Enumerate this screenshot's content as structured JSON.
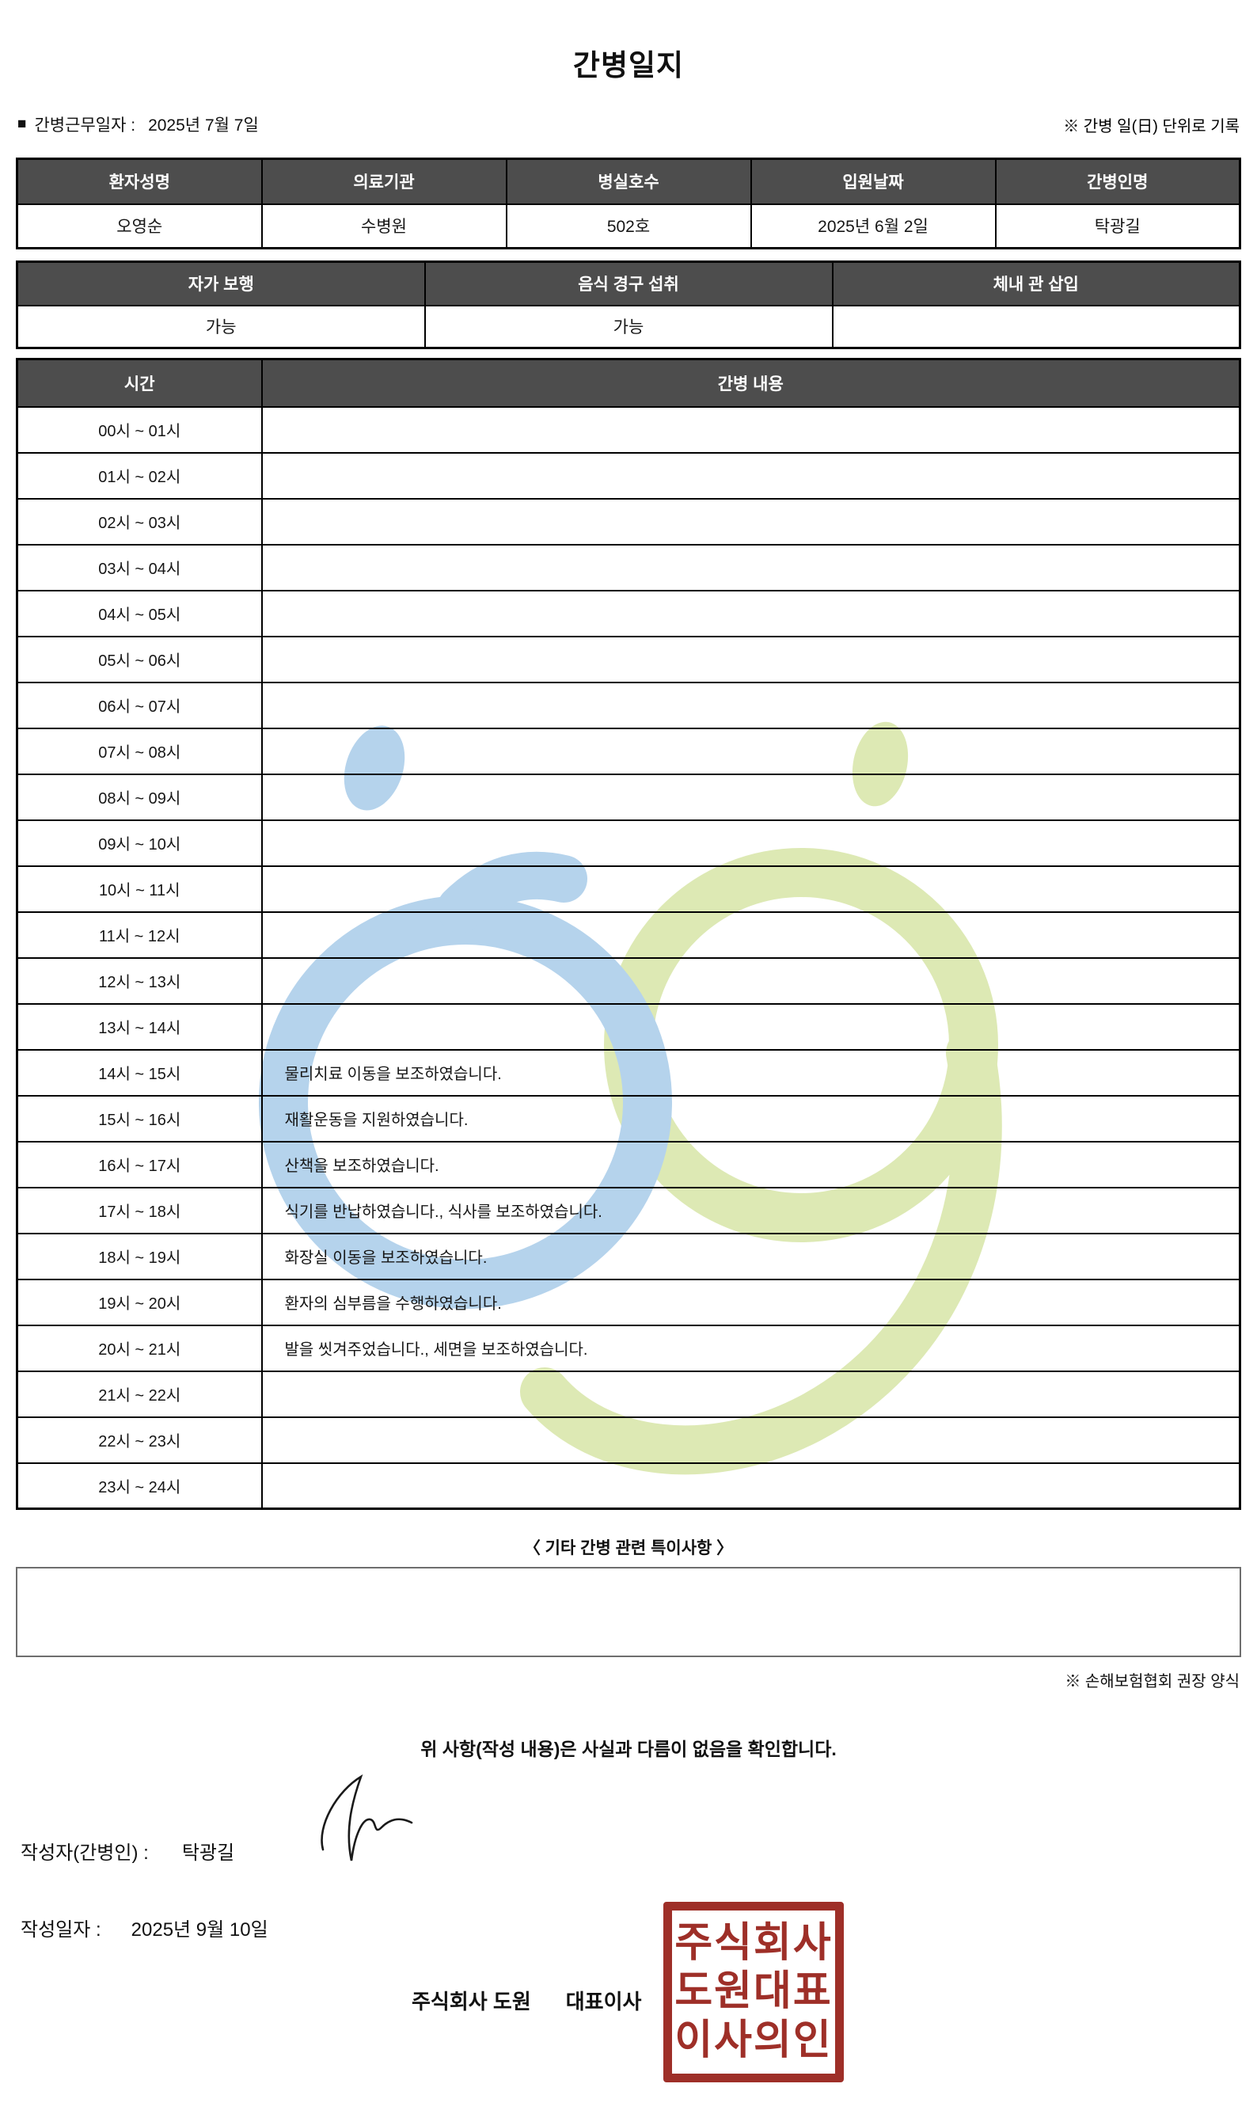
{
  "title": "간병일지",
  "meta": {
    "bullet": "■",
    "work_date_label": "간병근무일자  :",
    "work_date": "2025년 7월 7일",
    "unit_note": "※ 간병 일(日) 단위로 기록"
  },
  "patient_table": {
    "headers": [
      "환자성명",
      "의료기관",
      "병실호수",
      "입원날짜",
      "간병인명"
    ],
    "values": [
      "오영순",
      "수병원",
      "502호",
      "2025년 6월 2일",
      "탁광길"
    ]
  },
  "condition_table": {
    "headers": [
      "자가 보행",
      "음식 경구 섭취",
      "체내 관 삽입"
    ],
    "values": [
      "가능",
      "가능",
      ""
    ]
  },
  "care_table": {
    "time_header": "시간",
    "content_header": "간병 내용",
    "rows": [
      {
        "time": "00시 ~ 01시",
        "content": ""
      },
      {
        "time": "01시 ~ 02시",
        "content": ""
      },
      {
        "time": "02시 ~ 03시",
        "content": ""
      },
      {
        "time": "03시 ~ 04시",
        "content": ""
      },
      {
        "time": "04시 ~ 05시",
        "content": ""
      },
      {
        "time": "05시 ~ 06시",
        "content": ""
      },
      {
        "time": "06시 ~ 07시",
        "content": ""
      },
      {
        "time": "07시 ~ 08시",
        "content": ""
      },
      {
        "time": "08시 ~ 09시",
        "content": ""
      },
      {
        "time": "09시 ~ 10시",
        "content": ""
      },
      {
        "time": "10시 ~ 11시",
        "content": ""
      },
      {
        "time": "11시 ~ 12시",
        "content": ""
      },
      {
        "time": "12시 ~ 13시",
        "content": ""
      },
      {
        "time": "13시 ~ 14시",
        "content": ""
      },
      {
        "time": "14시 ~ 15시",
        "content": "물리치료 이동을 보조하였습니다."
      },
      {
        "time": "15시 ~ 16시",
        "content": "재활운동을 지원하였습니다."
      },
      {
        "time": "16시 ~ 17시",
        "content": "산책을 보조하였습니다."
      },
      {
        "time": "17시 ~ 18시",
        "content": "식기를 반납하였습니다., 식사를 보조하였습니다."
      },
      {
        "time": "18시 ~ 19시",
        "content": "화장실 이동을 보조하였습니다."
      },
      {
        "time": "19시 ~ 20시",
        "content": "환자의 심부름을 수행하였습니다."
      },
      {
        "time": "20시 ~ 21시",
        "content": "발을 씻겨주었습니다., 세면을 보조하였습니다."
      },
      {
        "time": "21시 ~ 22시",
        "content": ""
      },
      {
        "time": "22시 ~ 23시",
        "content": ""
      },
      {
        "time": "23시 ~ 24시",
        "content": ""
      }
    ]
  },
  "notes": {
    "title": "〈 기타 간병 관련 특이사항 〉",
    "content": "",
    "form_note": "※ 손해보험협회 권장 양식"
  },
  "footer": {
    "confirmation": "위 사항(작성 내용)은 사실과 다름이 없음을 확인합니다.",
    "writer_label": "작성자(간병인) :",
    "writer_name": "탁광길",
    "date_label": "작성일자 :",
    "written_date": "2025년 9월 10일",
    "company": "주식회사 도원",
    "company_title": "대표이사",
    "seal_lines": [
      "주식회사",
      "도원대표",
      "이사의인"
    ],
    "seal_color": "#9e2f28"
  },
  "watermark": {
    "blue": "#b5d3ec",
    "green": "#dde9b4"
  }
}
